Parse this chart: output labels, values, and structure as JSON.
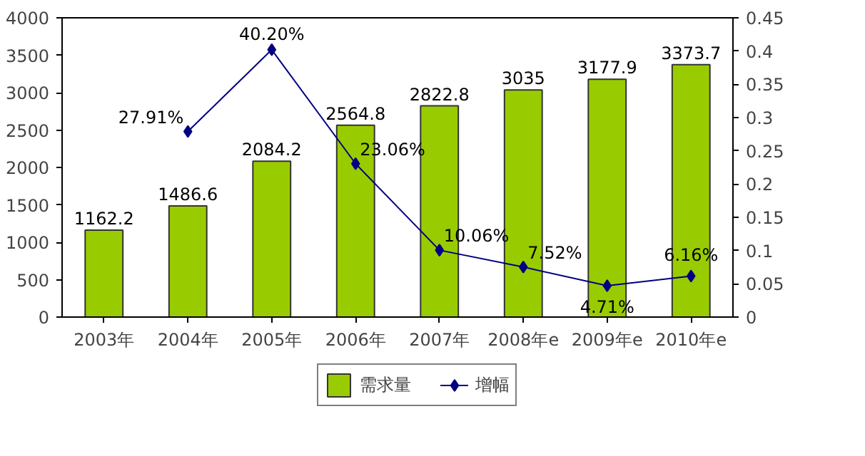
{
  "chart_data": {
    "type": "bar",
    "categories": [
      "2003年",
      "2004年",
      "2005年",
      "2006年",
      "2007年",
      "2008年e",
      "2009年e",
      "2010年e"
    ],
    "series": [
      {
        "name": "需求量",
        "color": "#99cc00",
        "values": [
          1162.2,
          1486.6,
          2084.2,
          2564.8,
          2822.8,
          3035,
          3177.9,
          3373.7
        ],
        "value_labels": [
          "1162.2",
          "1486.6",
          "2084.2",
          "2564.8",
          "2822.8",
          "3035",
          "3177.9",
          "3373.7"
        ]
      },
      {
        "name": "增幅",
        "type": "line",
        "axis": "y2",
        "color": "#000080",
        "marker": "diamond",
        "values": [
          null,
          0.2791,
          0.402,
          0.2306,
          0.1006,
          0.0752,
          0.0471,
          0.0616
        ],
        "value_labels": [
          null,
          "27.91%",
          "40.20%",
          "23.06%",
          "10.06%",
          "7.52%",
          "4.71%",
          "6.16%"
        ]
      }
    ],
    "ylim": [
      0,
      4000
    ],
    "yticks": [
      0,
      500,
      1000,
      1500,
      2000,
      2500,
      3000,
      3500,
      4000
    ],
    "y2lim": [
      0,
      0.45
    ],
    "y2ticks": [
      0,
      0.05,
      0.1,
      0.15,
      0.2,
      0.25,
      0.3,
      0.35,
      0.4,
      0.45
    ],
    "grid": false,
    "legend": "bottom"
  }
}
